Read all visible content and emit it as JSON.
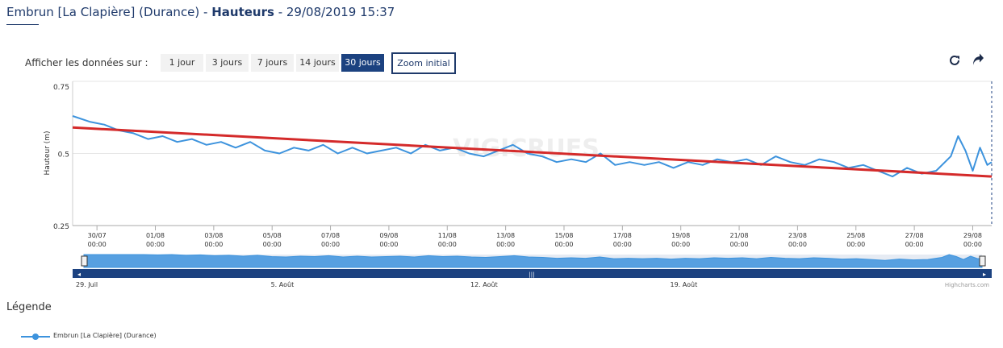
{
  "header": {
    "station": "Embrun [La Clapière] (Durance)",
    "sep1": " - ",
    "measure": "Hauteurs",
    "sep2": " - ",
    "datetime": "29/08/2019 15:37"
  },
  "range_selector": {
    "label": "Afficher les données sur :",
    "buttons": [
      "1 jour",
      "3 jours",
      "7 jours",
      "14 jours",
      "30 jours"
    ],
    "active": "30 jours",
    "zoom_reset": "Zoom initial"
  },
  "toolbar": {
    "refresh_icon": "refresh-icon",
    "share_icon": "share-arrow-icon"
  },
  "watermark": "VIGICRUES",
  "credits": "Highcharts.com",
  "legend": {
    "title": "Légende",
    "item": "Embrun [La Clapière] (Durance)"
  },
  "navigator": {
    "labels": [
      "29. Juil",
      "5. Août",
      "12. Août",
      "19. Août"
    ]
  },
  "chart_data": {
    "type": "line",
    "title": "Embrun [La Clapière] (Durance) - Hauteurs - 29/08/2019 15:37",
    "ylabel": "Hauteur (m)",
    "xlabel": "",
    "ylim": [
      0.25,
      0.75
    ],
    "yticks": [
      "0.25",
      "0.5",
      "0.75"
    ],
    "x_range": [
      "2019-07-29T04:00",
      "2019-08-29T15:37"
    ],
    "xticks": [
      {
        "date": "30/07",
        "time": "00:00"
      },
      {
        "date": "01/08",
        "time": "00:00"
      },
      {
        "date": "03/08",
        "time": "00:00"
      },
      {
        "date": "05/08",
        "time": "00:00"
      },
      {
        "date": "07/08",
        "time": "00:00"
      },
      {
        "date": "09/08",
        "time": "00:00"
      },
      {
        "date": "11/08",
        "time": "00:00"
      },
      {
        "date": "13/08",
        "time": "00:00"
      },
      {
        "date": "15/08",
        "time": "00:00"
      },
      {
        "date": "17/08",
        "time": "00:00"
      },
      {
        "date": "19/08",
        "time": "00:00"
      },
      {
        "date": "21/08",
        "time": "00:00"
      },
      {
        "date": "23/08",
        "time": "00:00"
      },
      {
        "date": "25/08",
        "time": "00:00"
      },
      {
        "date": "27/08",
        "time": "00:00"
      },
      {
        "date": "29/08",
        "time": "00:00"
      }
    ],
    "grid": true,
    "series": [
      {
        "name": "Embrun [La Clapière] (Durance)",
        "color": "#3d93dd",
        "x": [
          "2019-07-29T04:00",
          "2019-07-29T18:00",
          "2019-07-30T06:00",
          "2019-07-30T18:00",
          "2019-07-31T06:00",
          "2019-07-31T18:00",
          "2019-08-01T06:00",
          "2019-08-01T18:00",
          "2019-08-02T06:00",
          "2019-08-02T18:00",
          "2019-08-03T06:00",
          "2019-08-03T18:00",
          "2019-08-04T06:00",
          "2019-08-04T18:00",
          "2019-08-05T06:00",
          "2019-08-05T18:00",
          "2019-08-06T06:00",
          "2019-08-06T18:00",
          "2019-08-07T06:00",
          "2019-08-07T18:00",
          "2019-08-08T06:00",
          "2019-08-08T18:00",
          "2019-08-09T06:00",
          "2019-08-09T18:00",
          "2019-08-10T06:00",
          "2019-08-10T18:00",
          "2019-08-11T06:00",
          "2019-08-11T18:00",
          "2019-08-12T06:00",
          "2019-08-12T18:00",
          "2019-08-13T06:00",
          "2019-08-13T18:00",
          "2019-08-14T06:00",
          "2019-08-14T18:00",
          "2019-08-15T06:00",
          "2019-08-15T18:00",
          "2019-08-16T06:00",
          "2019-08-16T18:00",
          "2019-08-17T06:00",
          "2019-08-17T18:00",
          "2019-08-18T06:00",
          "2019-08-18T18:00",
          "2019-08-19T06:00",
          "2019-08-19T18:00",
          "2019-08-20T06:00",
          "2019-08-20T18:00",
          "2019-08-21T06:00",
          "2019-08-21T18:00",
          "2019-08-22T06:00",
          "2019-08-22T18:00",
          "2019-08-23T06:00",
          "2019-08-23T18:00",
          "2019-08-24T06:00",
          "2019-08-24T18:00",
          "2019-08-25T06:00",
          "2019-08-25T18:00",
          "2019-08-26T06:00",
          "2019-08-26T18:00",
          "2019-08-27T06:00",
          "2019-08-27T18:00",
          "2019-08-28T06:00",
          "2019-08-28T12:00",
          "2019-08-28T18:00",
          "2019-08-29T00:00",
          "2019-08-29T06:00",
          "2019-08-29T12:00",
          "2019-08-29T15:37"
        ],
        "y": [
          0.63,
          0.61,
          0.6,
          0.58,
          0.57,
          0.55,
          0.56,
          0.54,
          0.55,
          0.53,
          0.54,
          0.52,
          0.54,
          0.51,
          0.5,
          0.52,
          0.51,
          0.53,
          0.5,
          0.52,
          0.5,
          0.51,
          0.52,
          0.5,
          0.53,
          0.51,
          0.52,
          0.5,
          0.49,
          0.51,
          0.53,
          0.5,
          0.49,
          0.47,
          0.48,
          0.47,
          0.5,
          0.46,
          0.47,
          0.46,
          0.47,
          0.45,
          0.47,
          0.46,
          0.48,
          0.47,
          0.48,
          0.46,
          0.49,
          0.47,
          0.46,
          0.48,
          0.47,
          0.45,
          0.46,
          0.44,
          0.42,
          0.45,
          0.43,
          0.44,
          0.49,
          0.56,
          0.51,
          0.44,
          0.52,
          0.46,
          0.47
        ]
      },
      {
        "name": "",
        "color": "#d42a2a",
        "x": [
          "2019-07-29T04:00",
          "2019-08-29T15:37"
        ],
        "y": [
          0.59,
          0.42
        ]
      }
    ]
  }
}
